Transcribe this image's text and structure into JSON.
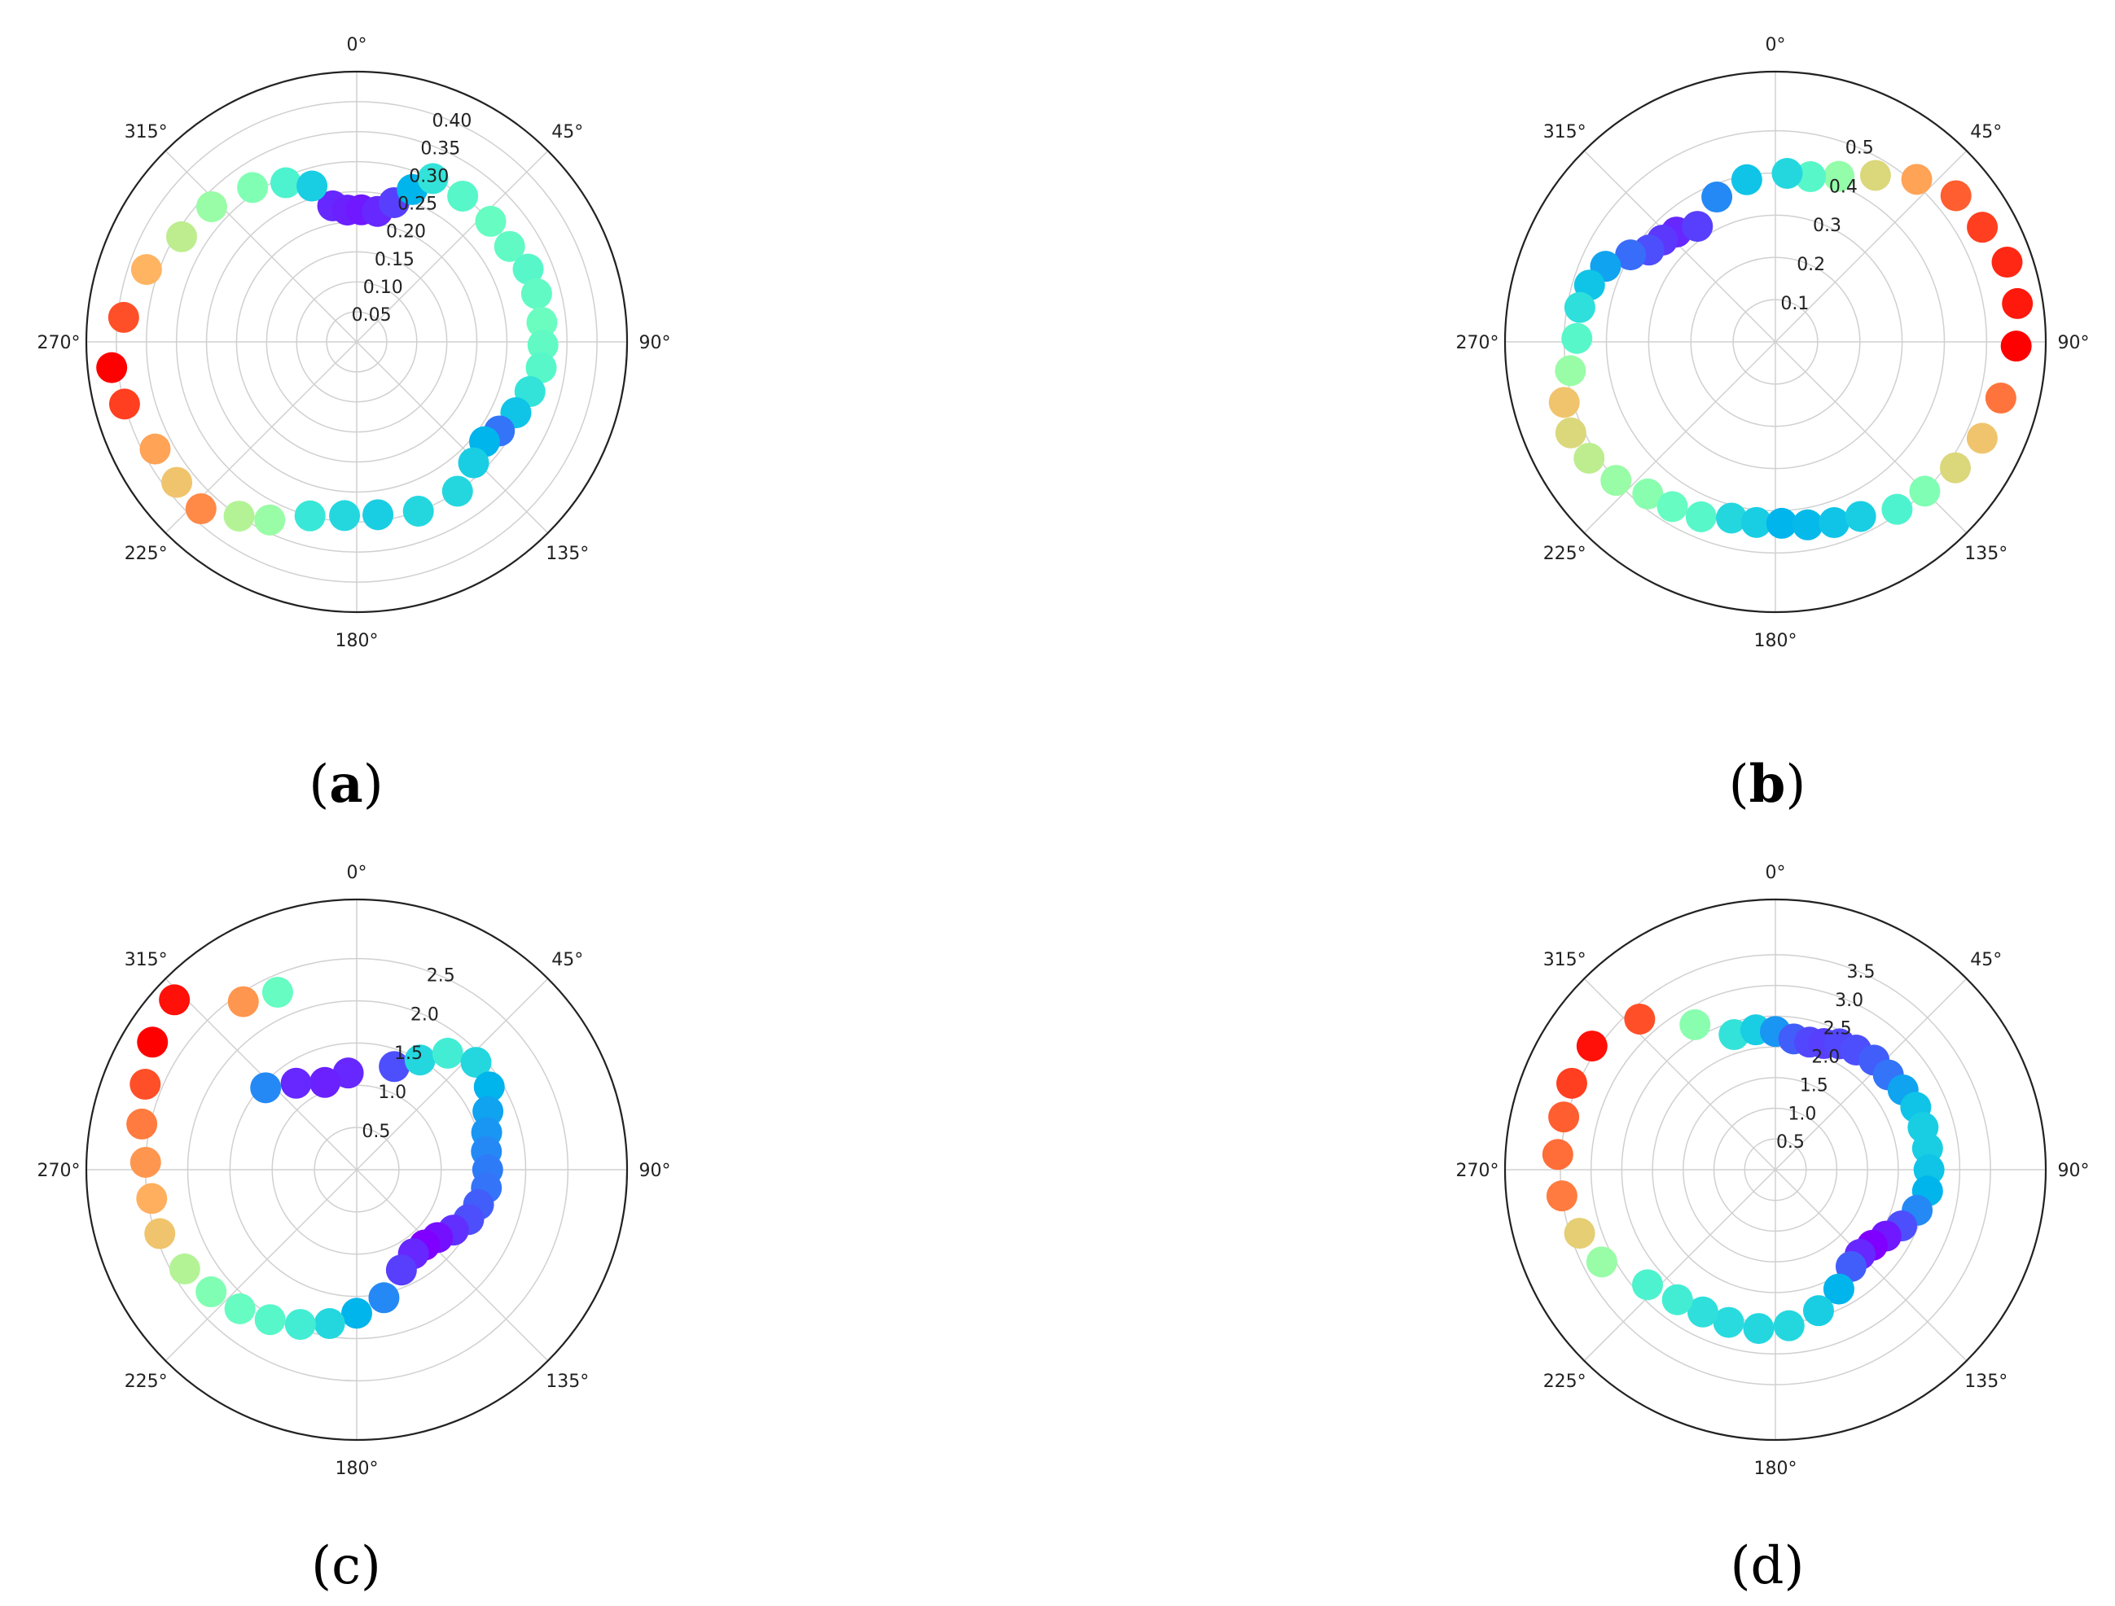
{
  "chart_data": [
    {
      "type": "scatter",
      "projection": "polar",
      "theta_direction": "clockwise",
      "theta_zero": "top",
      "caption": "a",
      "caption_bold": true,
      "theta_tick_labels": [
        "0°",
        "45°",
        "90°",
        "135°",
        "180°",
        "225°",
        "270°",
        "315°"
      ],
      "r_tick_values": [
        0.05,
        0.1,
        0.15,
        0.2,
        0.25,
        0.3,
        0.35,
        0.4
      ],
      "r_tick_labels": [
        "0.05",
        "0.10",
        "0.15",
        "0.20",
        "0.25",
        "0.30",
        "0.35",
        "0.40"
      ],
      "rlim": [
        0,
        0.45
      ],
      "grid": true,
      "colormap": "rainbow",
      "points": [
        {
          "theta": 350,
          "r": 0.23,
          "c": 0.05
        },
        {
          "theta": 356,
          "r": 0.22,
          "c": 0.04
        },
        {
          "theta": 2,
          "r": 0.22,
          "c": 0.03
        },
        {
          "theta": 9,
          "r": 0.22,
          "c": 0.05
        },
        {
          "theta": 15,
          "r": 0.24,
          "c": 0.08
        },
        {
          "theta": 20,
          "r": 0.27,
          "c": 0.25
        },
        {
          "theta": 25,
          "r": 0.3,
          "c": 0.35
        },
        {
          "theta": 36,
          "r": 0.3,
          "c": 0.42
        },
        {
          "theta": 48,
          "r": 0.3,
          "c": 0.45
        },
        {
          "theta": 58,
          "r": 0.3,
          "c": 0.44
        },
        {
          "theta": 67,
          "r": 0.31,
          "c": 0.42
        },
        {
          "theta": 75,
          "r": 0.31,
          "c": 0.44
        },
        {
          "theta": 84,
          "r": 0.31,
          "c": 0.46
        },
        {
          "theta": 91,
          "r": 0.31,
          "c": 0.44
        },
        {
          "theta": 98,
          "r": 0.31,
          "c": 0.42
        },
        {
          "theta": 106,
          "r": 0.3,
          "c": 0.35
        },
        {
          "theta": 114,
          "r": 0.29,
          "c": 0.28
        },
        {
          "theta": 122,
          "r": 0.28,
          "c": 0.15
        },
        {
          "theta": 128,
          "r": 0.27,
          "c": 0.25
        },
        {
          "theta": 136,
          "r": 0.28,
          "c": 0.3
        },
        {
          "theta": 146,
          "r": 0.3,
          "c": 0.32
        },
        {
          "theta": 160,
          "r": 0.3,
          "c": 0.32
        },
        {
          "theta": 173,
          "r": 0.29,
          "c": 0.3
        },
        {
          "theta": 184,
          "r": 0.29,
          "c": 0.32
        },
        {
          "theta": 195,
          "r": 0.3,
          "c": 0.36
        },
        {
          "theta": 206,
          "r": 0.33,
          "c": 0.55
        },
        {
          "theta": 214,
          "r": 0.35,
          "c": 0.6
        },
        {
          "theta": 223,
          "r": 0.38,
          "c": 0.82
        },
        {
          "theta": 232,
          "r": 0.38,
          "c": 0.72
        },
        {
          "theta": 242,
          "r": 0.38,
          "c": 0.78
        },
        {
          "theta": 255,
          "r": 0.4,
          "c": 0.92
        },
        {
          "theta": 264,
          "r": 0.41,
          "c": 1.0
        },
        {
          "theta": 276,
          "r": 0.39,
          "c": 0.9
        },
        {
          "theta": 289,
          "r": 0.37,
          "c": 0.75
        },
        {
          "theta": 301,
          "r": 0.34,
          "c": 0.62
        },
        {
          "theta": 313,
          "r": 0.33,
          "c": 0.55
        },
        {
          "theta": 326,
          "r": 0.31,
          "c": 0.5
        },
        {
          "theta": 336,
          "r": 0.29,
          "c": 0.4
        },
        {
          "theta": 344,
          "r": 0.27,
          "c": 0.3
        }
      ]
    },
    {
      "type": "scatter",
      "projection": "polar",
      "theta_direction": "clockwise",
      "theta_zero": "top",
      "caption": "b",
      "caption_bold": true,
      "theta_tick_labels": [
        "0°",
        "45°",
        "90°",
        "135°",
        "180°",
        "225°",
        "270°",
        "315°"
      ],
      "r_tick_values": [
        0.1,
        0.2,
        0.3,
        0.4,
        0.5
      ],
      "r_tick_labels": [
        "0.1",
        "0.2",
        "0.3",
        "0.4",
        "0.5"
      ],
      "rlim": [
        0,
        0.64
      ],
      "grid": true,
      "colormap": "rainbow",
      "points": [
        {
          "theta": 318,
          "r": 0.35,
          "c": 0.05
        },
        {
          "theta": 312,
          "r": 0.36,
          "c": 0.07
        },
        {
          "theta": 306,
          "r": 0.37,
          "c": 0.1
        },
        {
          "theta": 301,
          "r": 0.4,
          "c": 0.14
        },
        {
          "theta": 294,
          "r": 0.44,
          "c": 0.22
        },
        {
          "theta": 287,
          "r": 0.46,
          "c": 0.28
        },
        {
          "theta": 280,
          "r": 0.47,
          "c": 0.34
        },
        {
          "theta": 271,
          "r": 0.47,
          "c": 0.42
        },
        {
          "theta": 262,
          "r": 0.49,
          "c": 0.55
        },
        {
          "theta": 254,
          "r": 0.52,
          "c": 0.72
        },
        {
          "theta": 246,
          "r": 0.53,
          "c": 0.68
        },
        {
          "theta": 238,
          "r": 0.52,
          "c": 0.62
        },
        {
          "theta": 229,
          "r": 0.5,
          "c": 0.55
        },
        {
          "theta": 220,
          "r": 0.47,
          "c": 0.52
        },
        {
          "theta": 212,
          "r": 0.46,
          "c": 0.45
        },
        {
          "theta": 203,
          "r": 0.45,
          "c": 0.42
        },
        {
          "theta": 194,
          "r": 0.43,
          "c": 0.32
        },
        {
          "theta": 186,
          "r": 0.43,
          "c": 0.3
        },
        {
          "theta": 178,
          "r": 0.43,
          "c": 0.25
        },
        {
          "theta": 170,
          "r": 0.44,
          "c": 0.26
        },
        {
          "theta": 162,
          "r": 0.45,
          "c": 0.28
        },
        {
          "theta": 154,
          "r": 0.46,
          "c": 0.3
        },
        {
          "theta": 144,
          "r": 0.49,
          "c": 0.4
        },
        {
          "theta": 135,
          "r": 0.5,
          "c": 0.5
        },
        {
          "theta": 125,
          "r": 0.52,
          "c": 0.68
        },
        {
          "theta": 115,
          "r": 0.54,
          "c": 0.72
        },
        {
          "theta": 104,
          "r": 0.55,
          "c": 0.85
        },
        {
          "theta": 91,
          "r": 0.57,
          "c": 1.0
        },
        {
          "theta": 81,
          "r": 0.58,
          "c": 0.97
        },
        {
          "theta": 71,
          "r": 0.58,
          "c": 0.95
        },
        {
          "theta": 61,
          "r": 0.56,
          "c": 0.92
        },
        {
          "theta": 51,
          "r": 0.55,
          "c": 0.88
        },
        {
          "theta": 41,
          "r": 0.51,
          "c": 0.78
        },
        {
          "theta": 31,
          "r": 0.46,
          "c": 0.68
        },
        {
          "theta": 21,
          "r": 0.42,
          "c": 0.54
        },
        {
          "theta": 12,
          "r": 0.4,
          "c": 0.42
        },
        {
          "theta": 4,
          "r": 0.4,
          "c": 0.32
        },
        {
          "theta": 350,
          "r": 0.39,
          "c": 0.28
        },
        {
          "theta": 338,
          "r": 0.37,
          "c": 0.18
        },
        {
          "theta": 326,
          "r": 0.33,
          "c": 0.08
        }
      ]
    },
    {
      "type": "scatter",
      "projection": "polar",
      "theta_direction": "clockwise",
      "theta_zero": "top",
      "caption": "c",
      "caption_bold": false,
      "theta_tick_labels": [
        "0°",
        "45°",
        "90°",
        "135°",
        "180°",
        "225°",
        "270°",
        "315°"
      ],
      "r_tick_values": [
        0.5,
        1.0,
        1.5,
        2.0,
        2.5
      ],
      "r_tick_labels": [
        "0.5",
        "1.0",
        "1.5",
        "2.0",
        "2.5"
      ],
      "rlim": [
        0,
        3.2
      ],
      "grid": true,
      "colormap": "rainbow",
      "points": [
        {
          "theta": 355,
          "r": 1.15,
          "c": 0.05
        },
        {
          "theta": 340,
          "r": 1.1,
          "c": 0.04
        },
        {
          "theta": 325,
          "r": 1.25,
          "c": 0.05
        },
        {
          "theta": 312,
          "r": 1.45,
          "c": 0.18
        },
        {
          "theta": 20,
          "r": 1.3,
          "c": 0.1
        },
        {
          "theta": 30,
          "r": 1.5,
          "c": 0.32
        },
        {
          "theta": 38,
          "r": 1.75,
          "c": 0.38
        },
        {
          "theta": 48,
          "r": 1.9,
          "c": 0.32
        },
        {
          "theta": 58,
          "r": 1.85,
          "c": 0.25
        },
        {
          "theta": 66,
          "r": 1.7,
          "c": 0.22
        },
        {
          "theta": 74,
          "r": 1.6,
          "c": 0.2
        },
        {
          "theta": 82,
          "r": 1.55,
          "c": 0.18
        },
        {
          "theta": 90,
          "r": 1.55,
          "c": 0.16
        },
        {
          "theta": 98,
          "r": 1.55,
          "c": 0.15
        },
        {
          "theta": 106,
          "r": 1.5,
          "c": 0.12
        },
        {
          "theta": 114,
          "r": 1.45,
          "c": 0.1
        },
        {
          "theta": 122,
          "r": 1.35,
          "c": 0.06
        },
        {
          "theta": 130,
          "r": 1.25,
          "c": 0.02
        },
        {
          "theta": 138,
          "r": 1.2,
          "c": 0.0
        },
        {
          "theta": 146,
          "r": 1.2,
          "c": 0.05
        },
        {
          "theta": 156,
          "r": 1.3,
          "c": 0.08
        },
        {
          "theta": 168,
          "r": 1.55,
          "c": 0.18
        },
        {
          "theta": 180,
          "r": 1.7,
          "c": 0.25
        },
        {
          "theta": 190,
          "r": 1.85,
          "c": 0.32
        },
        {
          "theta": 200,
          "r": 1.95,
          "c": 0.38
        },
        {
          "theta": 210,
          "r": 2.05,
          "c": 0.42
        },
        {
          "theta": 220,
          "r": 2.15,
          "c": 0.45
        },
        {
          "theta": 230,
          "r": 2.25,
          "c": 0.5
        },
        {
          "theta": 240,
          "r": 2.35,
          "c": 0.6
        },
        {
          "theta": 252,
          "r": 2.45,
          "c": 0.72
        },
        {
          "theta": 262,
          "r": 2.45,
          "c": 0.76
        },
        {
          "theta": 272,
          "r": 2.5,
          "c": 0.8
        },
        {
          "theta": 282,
          "r": 2.6,
          "c": 0.84
        },
        {
          "theta": 292,
          "r": 2.7,
          "c": 0.9
        },
        {
          "theta": 302,
          "r": 2.85,
          "c": 1.0
        },
        {
          "theta": 313,
          "r": 2.95,
          "c": 0.98
        },
        {
          "theta": 326,
          "r": 2.4,
          "c": 0.8
        },
        {
          "theta": 336,
          "r": 2.3,
          "c": 0.45
        }
      ]
    },
    {
      "type": "scatter",
      "projection": "polar",
      "theta_direction": "clockwise",
      "theta_zero": "top",
      "caption": "d",
      "caption_bold": false,
      "theta_tick_labels": [
        "0°",
        "45°",
        "90°",
        "135°",
        "180°",
        "225°",
        "270°",
        "315°"
      ],
      "r_tick_values": [
        0.5,
        1.0,
        1.5,
        2.0,
        2.5,
        3.0,
        3.5
      ],
      "r_tick_labels": [
        "0.5",
        "1.0",
        "1.5",
        "2.0",
        "2.5",
        "3.0",
        "3.5"
      ],
      "rlim": [
        0,
        4.4
      ],
      "grid": true,
      "colormap": "rainbow",
      "points": [
        {
          "theta": 343,
          "r": 2.3,
          "c": 0.35
        },
        {
          "theta": 352,
          "r": 2.3,
          "c": 0.3
        },
        {
          "theta": 0,
          "r": 2.25,
          "c": 0.2
        },
        {
          "theta": 8,
          "r": 2.15,
          "c": 0.12
        },
        {
          "theta": 15,
          "r": 2.15,
          "c": 0.09
        },
        {
          "theta": 21,
          "r": 2.2,
          "c": 0.08
        },
        {
          "theta": 27,
          "r": 2.3,
          "c": 0.09
        },
        {
          "theta": 34,
          "r": 2.35,
          "c": 0.1
        },
        {
          "theta": 42,
          "r": 2.4,
          "c": 0.12
        },
        {
          "theta": 50,
          "r": 2.4,
          "c": 0.15
        },
        {
          "theta": 58,
          "r": 2.45,
          "c": 0.22
        },
        {
          "theta": 66,
          "r": 2.5,
          "c": 0.28
        },
        {
          "theta": 74,
          "r": 2.5,
          "c": 0.3
        },
        {
          "theta": 82,
          "r": 2.5,
          "c": 0.3
        },
        {
          "theta": 90,
          "r": 2.5,
          "c": 0.28
        },
        {
          "theta": 98,
          "r": 2.5,
          "c": 0.25
        },
        {
          "theta": 106,
          "r": 2.4,
          "c": 0.18
        },
        {
          "theta": 114,
          "r": 2.25,
          "c": 0.1
        },
        {
          "theta": 121,
          "r": 2.1,
          "c": 0.03
        },
        {
          "theta": 128,
          "r": 2.0,
          "c": 0.0
        },
        {
          "theta": 135,
          "r": 1.95,
          "c": 0.05
        },
        {
          "theta": 142,
          "r": 2.0,
          "c": 0.12
        },
        {
          "theta": 152,
          "r": 2.2,
          "c": 0.25
        },
        {
          "theta": 163,
          "r": 2.4,
          "c": 0.3
        },
        {
          "theta": 175,
          "r": 2.55,
          "c": 0.32
        },
        {
          "theta": 186,
          "r": 2.6,
          "c": 0.32
        },
        {
          "theta": 197,
          "r": 2.6,
          "c": 0.33
        },
        {
          "theta": 207,
          "r": 2.6,
          "c": 0.34
        },
        {
          "theta": 217,
          "r": 2.65,
          "c": 0.38
        },
        {
          "theta": 228,
          "r": 2.8,
          "c": 0.4
        },
        {
          "theta": 242,
          "r": 3.2,
          "c": 0.55
        },
        {
          "theta": 252,
          "r": 3.35,
          "c": 0.7
        },
        {
          "theta": 263,
          "r": 3.5,
          "c": 0.84
        },
        {
          "theta": 274,
          "r": 3.55,
          "c": 0.86
        },
        {
          "theta": 284,
          "r": 3.55,
          "c": 0.88
        },
        {
          "theta": 293,
          "r": 3.6,
          "c": 0.92
        },
        {
          "theta": 304,
          "r": 3.6,
          "c": 0.98
        },
        {
          "theta": 318,
          "r": 3.3,
          "c": 0.9
        },
        {
          "theta": 331,
          "r": 2.7,
          "c": 0.52
        }
      ]
    }
  ]
}
